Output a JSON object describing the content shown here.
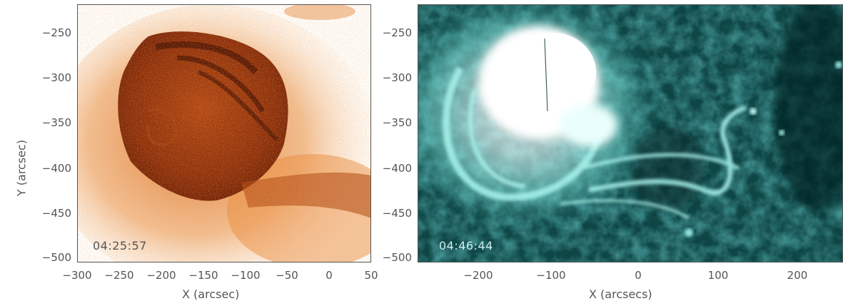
{
  "left_panel": {
    "timestamp": "04:25:57",
    "xlabel": "X (arcsec)",
    "ylabel": "Y (arcsec)",
    "x_ticks": [
      "−300",
      "−250",
      "−200",
      "−150",
      "−100",
      "−50",
      "0",
      "50"
    ],
    "y_ticks": [
      "−250",
      "−300",
      "−350",
      "−400",
      "−450",
      "−500"
    ],
    "color_base": "#ffffff",
    "color_dark": "#6b1e05",
    "color_mid": "#d86a1c"
  },
  "right_panel": {
    "timestamp": "04:46:44",
    "xlabel": "X (arcsecs)",
    "x_ticks": [
      "−200",
      "−100",
      "0",
      "100",
      "200"
    ],
    "y_ticks": [
      "−250",
      "−300",
      "−350",
      "−400",
      "−450",
      "−500"
    ],
    "color_base": "#0a3a3a",
    "color_bright": "#9ff5ee",
    "color_saturated": "#ffffff"
  }
}
